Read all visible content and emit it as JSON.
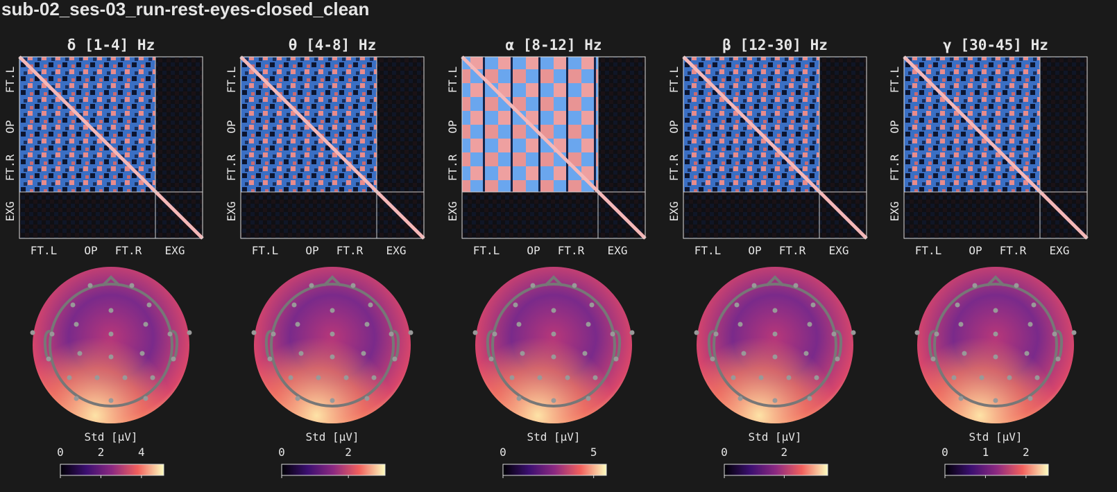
{
  "title": "sub-02_ses-03_run-rest-eyes-closed_clean",
  "panels": [
    {
      "title": "δ [1-4] Hz",
      "x_labels": [
        "FT.L",
        "OP",
        "FT.R",
        "EXG"
      ],
      "y_labels": [
        "FT.L",
        "OP",
        "FT.R",
        "EXG"
      ],
      "colorbar": {
        "label": "Std [μV]",
        "lim": [
          0,
          5.1
        ],
        "ticks": [
          0,
          2,
          4
        ]
      }
    },
    {
      "title": "θ [4-8] Hz",
      "x_labels": [
        "FT.L",
        "OP",
        "FT.R",
        "EXG"
      ],
      "y_labels": [
        "FT.L",
        "OP",
        "FT.R",
        "EXG"
      ],
      "colorbar": {
        "label": "Std [μV]",
        "lim": [
          0,
          3.1
        ],
        "ticks": [
          0,
          2
        ]
      }
    },
    {
      "title": "α [8-12] Hz",
      "x_labels": [
        "FT.L",
        "OP",
        "FT.R",
        "EXG"
      ],
      "y_labels": [
        "FT.L",
        "OP",
        "FT.R",
        "EXG"
      ],
      "colorbar": {
        "label": "Std [μV]",
        "lim": [
          0,
          5.7
        ],
        "ticks": [
          0,
          5
        ]
      }
    },
    {
      "title": "β [12-30] Hz",
      "x_labels": [
        "FT.L",
        "OP",
        "FT.R",
        "EXG"
      ],
      "y_labels": [
        "FT.L",
        "OP",
        "FT.R",
        "EXG"
      ],
      "colorbar": {
        "label": "Std [μV]",
        "lim": [
          0,
          3.45
        ],
        "ticks": [
          0,
          2
        ]
      }
    },
    {
      "title": "γ [30-45] Hz",
      "x_labels": [
        "FT.L",
        "OP",
        "FT.R",
        "EXG"
      ],
      "y_labels": [
        "FT.L",
        "OP",
        "FT.R",
        "EXG"
      ],
      "colorbar": {
        "label": "Std [μV]",
        "lim": [
          0,
          2.55
        ],
        "ticks": [
          0,
          1,
          2
        ]
      }
    }
  ]
}
